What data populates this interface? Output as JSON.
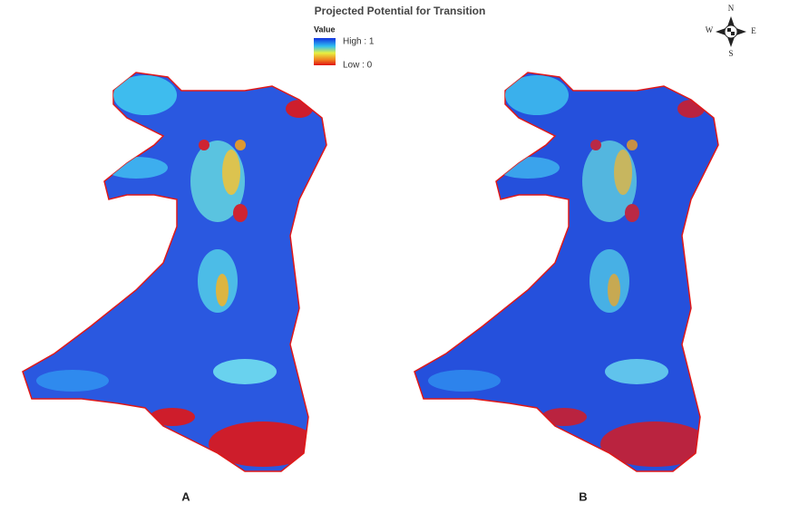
{
  "title": "Projected Potential for Transition",
  "legend": {
    "heading": "Value",
    "high": "High : 1",
    "low": "Low : 0"
  },
  "compass": {
    "n": "N",
    "s": "S",
    "e": "E",
    "w": "W"
  },
  "panels": [
    {
      "label": "A"
    },
    {
      "label": "B"
    }
  ]
}
